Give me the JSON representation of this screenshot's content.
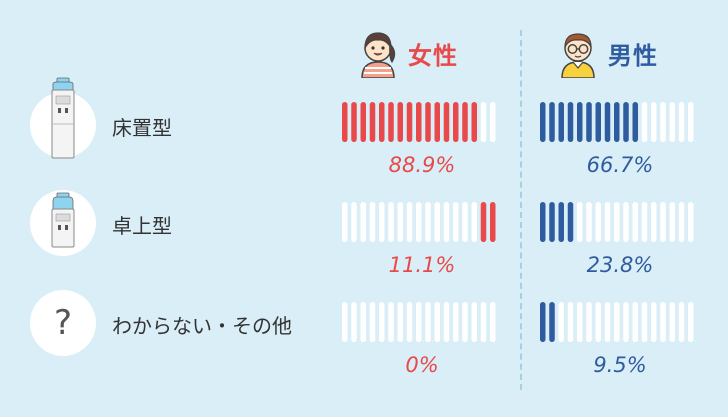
{
  "colors": {
    "female": "#e8494b",
    "male": "#2f5c9e",
    "empty": "#ffffff",
    "background": "#d9eef7"
  },
  "headers": {
    "female": "女性",
    "male": "男性"
  },
  "chart_data": {
    "type": "bar",
    "bar_style": "segmented-17-ticks",
    "categories": [
      "床置型",
      "卓上型",
      "わからない・その他"
    ],
    "category_icons": [
      "floor-water-dispenser-icon",
      "tabletop-water-dispenser-icon",
      "question-mark-icon"
    ],
    "series": [
      {
        "name": "女性",
        "values": [
          88.9,
          11.1,
          0
        ],
        "labels": [
          "88.9%",
          "11.1%",
          "0%"
        ],
        "fill_from": "left-for-first-category-right-otherwise"
      },
      {
        "name": "男性",
        "values": [
          66.7,
          23.8,
          9.5
        ],
        "labels": [
          "66.7%",
          "23.8%",
          "9.5%"
        ],
        "fill_from": "left"
      }
    ],
    "unit": "%",
    "ylim": [
      0,
      100
    ]
  }
}
